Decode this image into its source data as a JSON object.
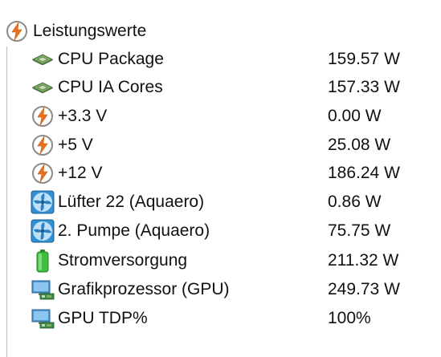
{
  "section": {
    "title": "Leistungswerte",
    "icon": "power-bolt-icon"
  },
  "colors": {
    "bolt_orange": "#e8711c",
    "chip_green": "#6f9e5a",
    "fan_blue": "#2f8fd0",
    "battery_green": "#3fbf3f",
    "gpu_blue": "#4a9ad8"
  },
  "rows": [
    {
      "name": "CPU Package",
      "value": "159.57 W",
      "icon": "cpu-chip-icon"
    },
    {
      "name": "CPU IA Cores",
      "value": "157.33 W",
      "icon": "cpu-chip-icon"
    },
    {
      "name": "+3.3 V",
      "value": "0.00 W",
      "icon": "power-bolt-icon"
    },
    {
      "name": "+5 V",
      "value": "25.08 W",
      "icon": "power-bolt-icon"
    },
    {
      "name": "+12 V",
      "value": "186.24 W",
      "icon": "power-bolt-icon"
    },
    {
      "name": "Lüfter 22 (Aquaero)",
      "value": "0.86 W",
      "icon": "fan-icon"
    },
    {
      "name": "2. Pumpe (Aquaero)",
      "value": "75.75 W",
      "icon": "fan-icon"
    },
    {
      "name": "Stromversorgung",
      "value": "211.32 W",
      "icon": "battery-icon"
    },
    {
      "name": "Grafikprozessor (GPU)",
      "value": "249.73 W",
      "icon": "gpu-monitor-icon"
    },
    {
      "name": "GPU TDP%",
      "value": "100%",
      "icon": "gpu-monitor-icon"
    }
  ]
}
